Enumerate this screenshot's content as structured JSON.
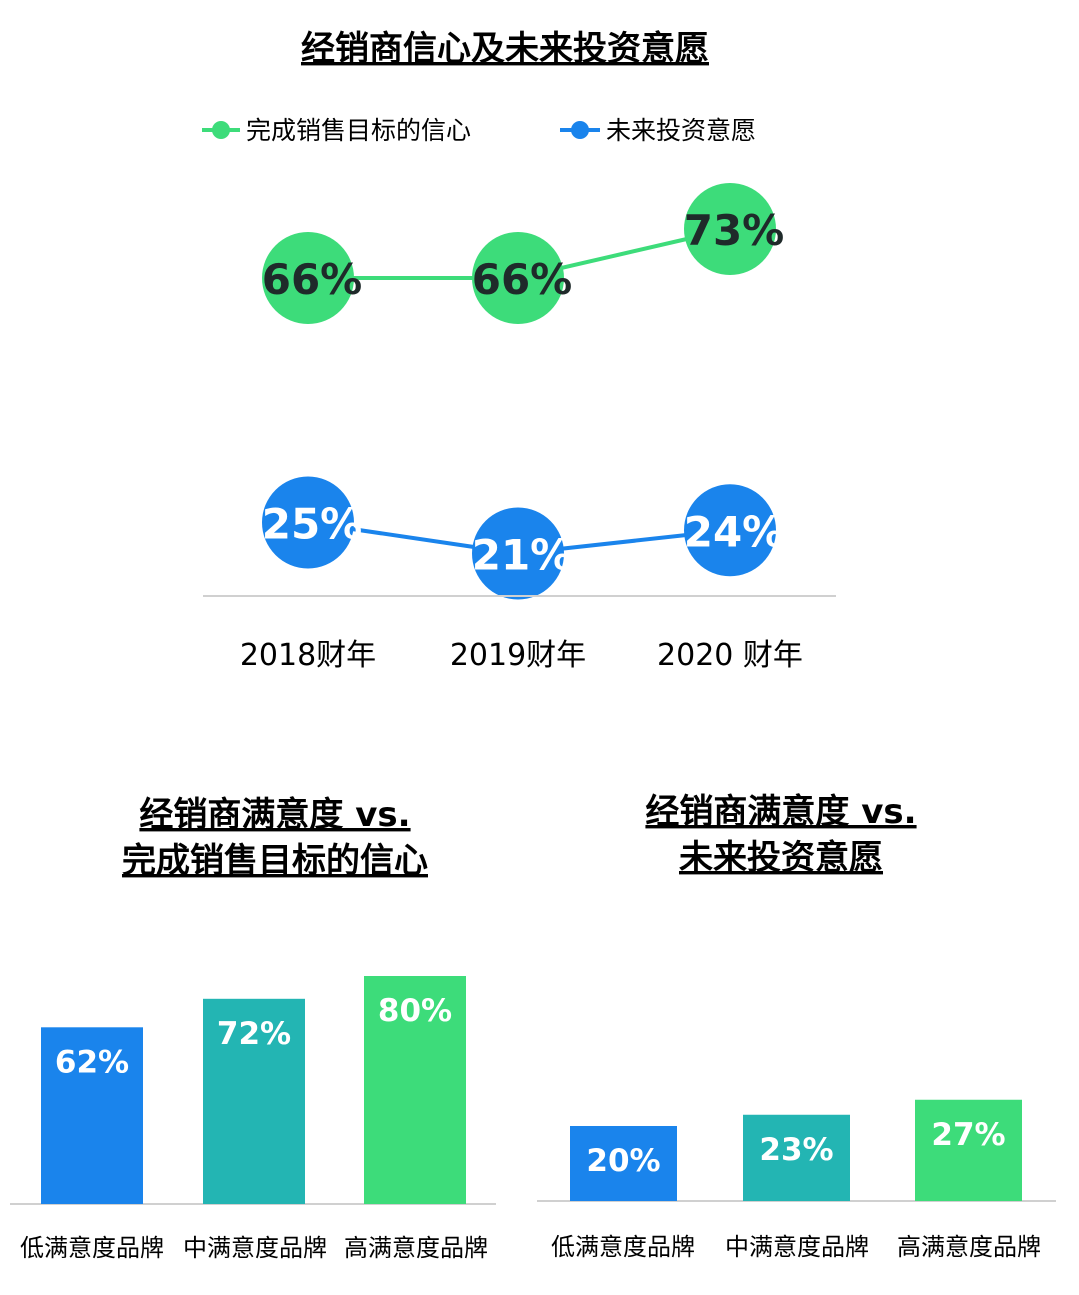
{
  "colors": {
    "green": "#3ddc7a",
    "blue": "#1a84ec",
    "teal": "#23b5b3",
    "axis": "#d0d0d0",
    "dark_label": "#1f2a2a",
    "white_label": "#ffffff"
  },
  "chart_data": [
    {
      "type": "line",
      "title": "经销商信心及未来投资意愿",
      "categories": [
        "2018财年",
        "2019财年",
        "2020 财年"
      ],
      "series": [
        {
          "name": "完成销售目标的信心",
          "values": [
            66,
            66,
            73
          ],
          "labels": [
            "66%",
            "66%",
            "73%"
          ],
          "color": "#3ddc7a"
        },
        {
          "name": "未来投资意愿",
          "values": [
            25,
            21,
            24
          ],
          "labels": [
            "25%",
            "21%",
            "24%"
          ],
          "color": "#1a84ec"
        }
      ],
      "legend": "top"
    },
    {
      "type": "bar",
      "title": [
        "经销商满意度 vs.",
        "完成销售目标的信心"
      ],
      "categories": [
        "低满意度品牌",
        "中满意度品牌",
        "高满意度品牌"
      ],
      "values": [
        62,
        72,
        80
      ],
      "labels": [
        "62%",
        "72%",
        "80%"
      ],
      "colors": [
        "#1a84ec",
        "#23b5b3",
        "#3ddc7a"
      ]
    },
    {
      "type": "bar",
      "title": [
        "经销商满意度 vs.",
        "未来投资意愿"
      ],
      "categories": [
        "低满意度品牌",
        "中满意度品牌",
        "高满意度品牌"
      ],
      "values": [
        20,
        23,
        27
      ],
      "labels": [
        "20%",
        "23%",
        "27%"
      ],
      "colors": [
        "#1a84ec",
        "#23b5b3",
        "#3ddc7a"
      ]
    }
  ]
}
